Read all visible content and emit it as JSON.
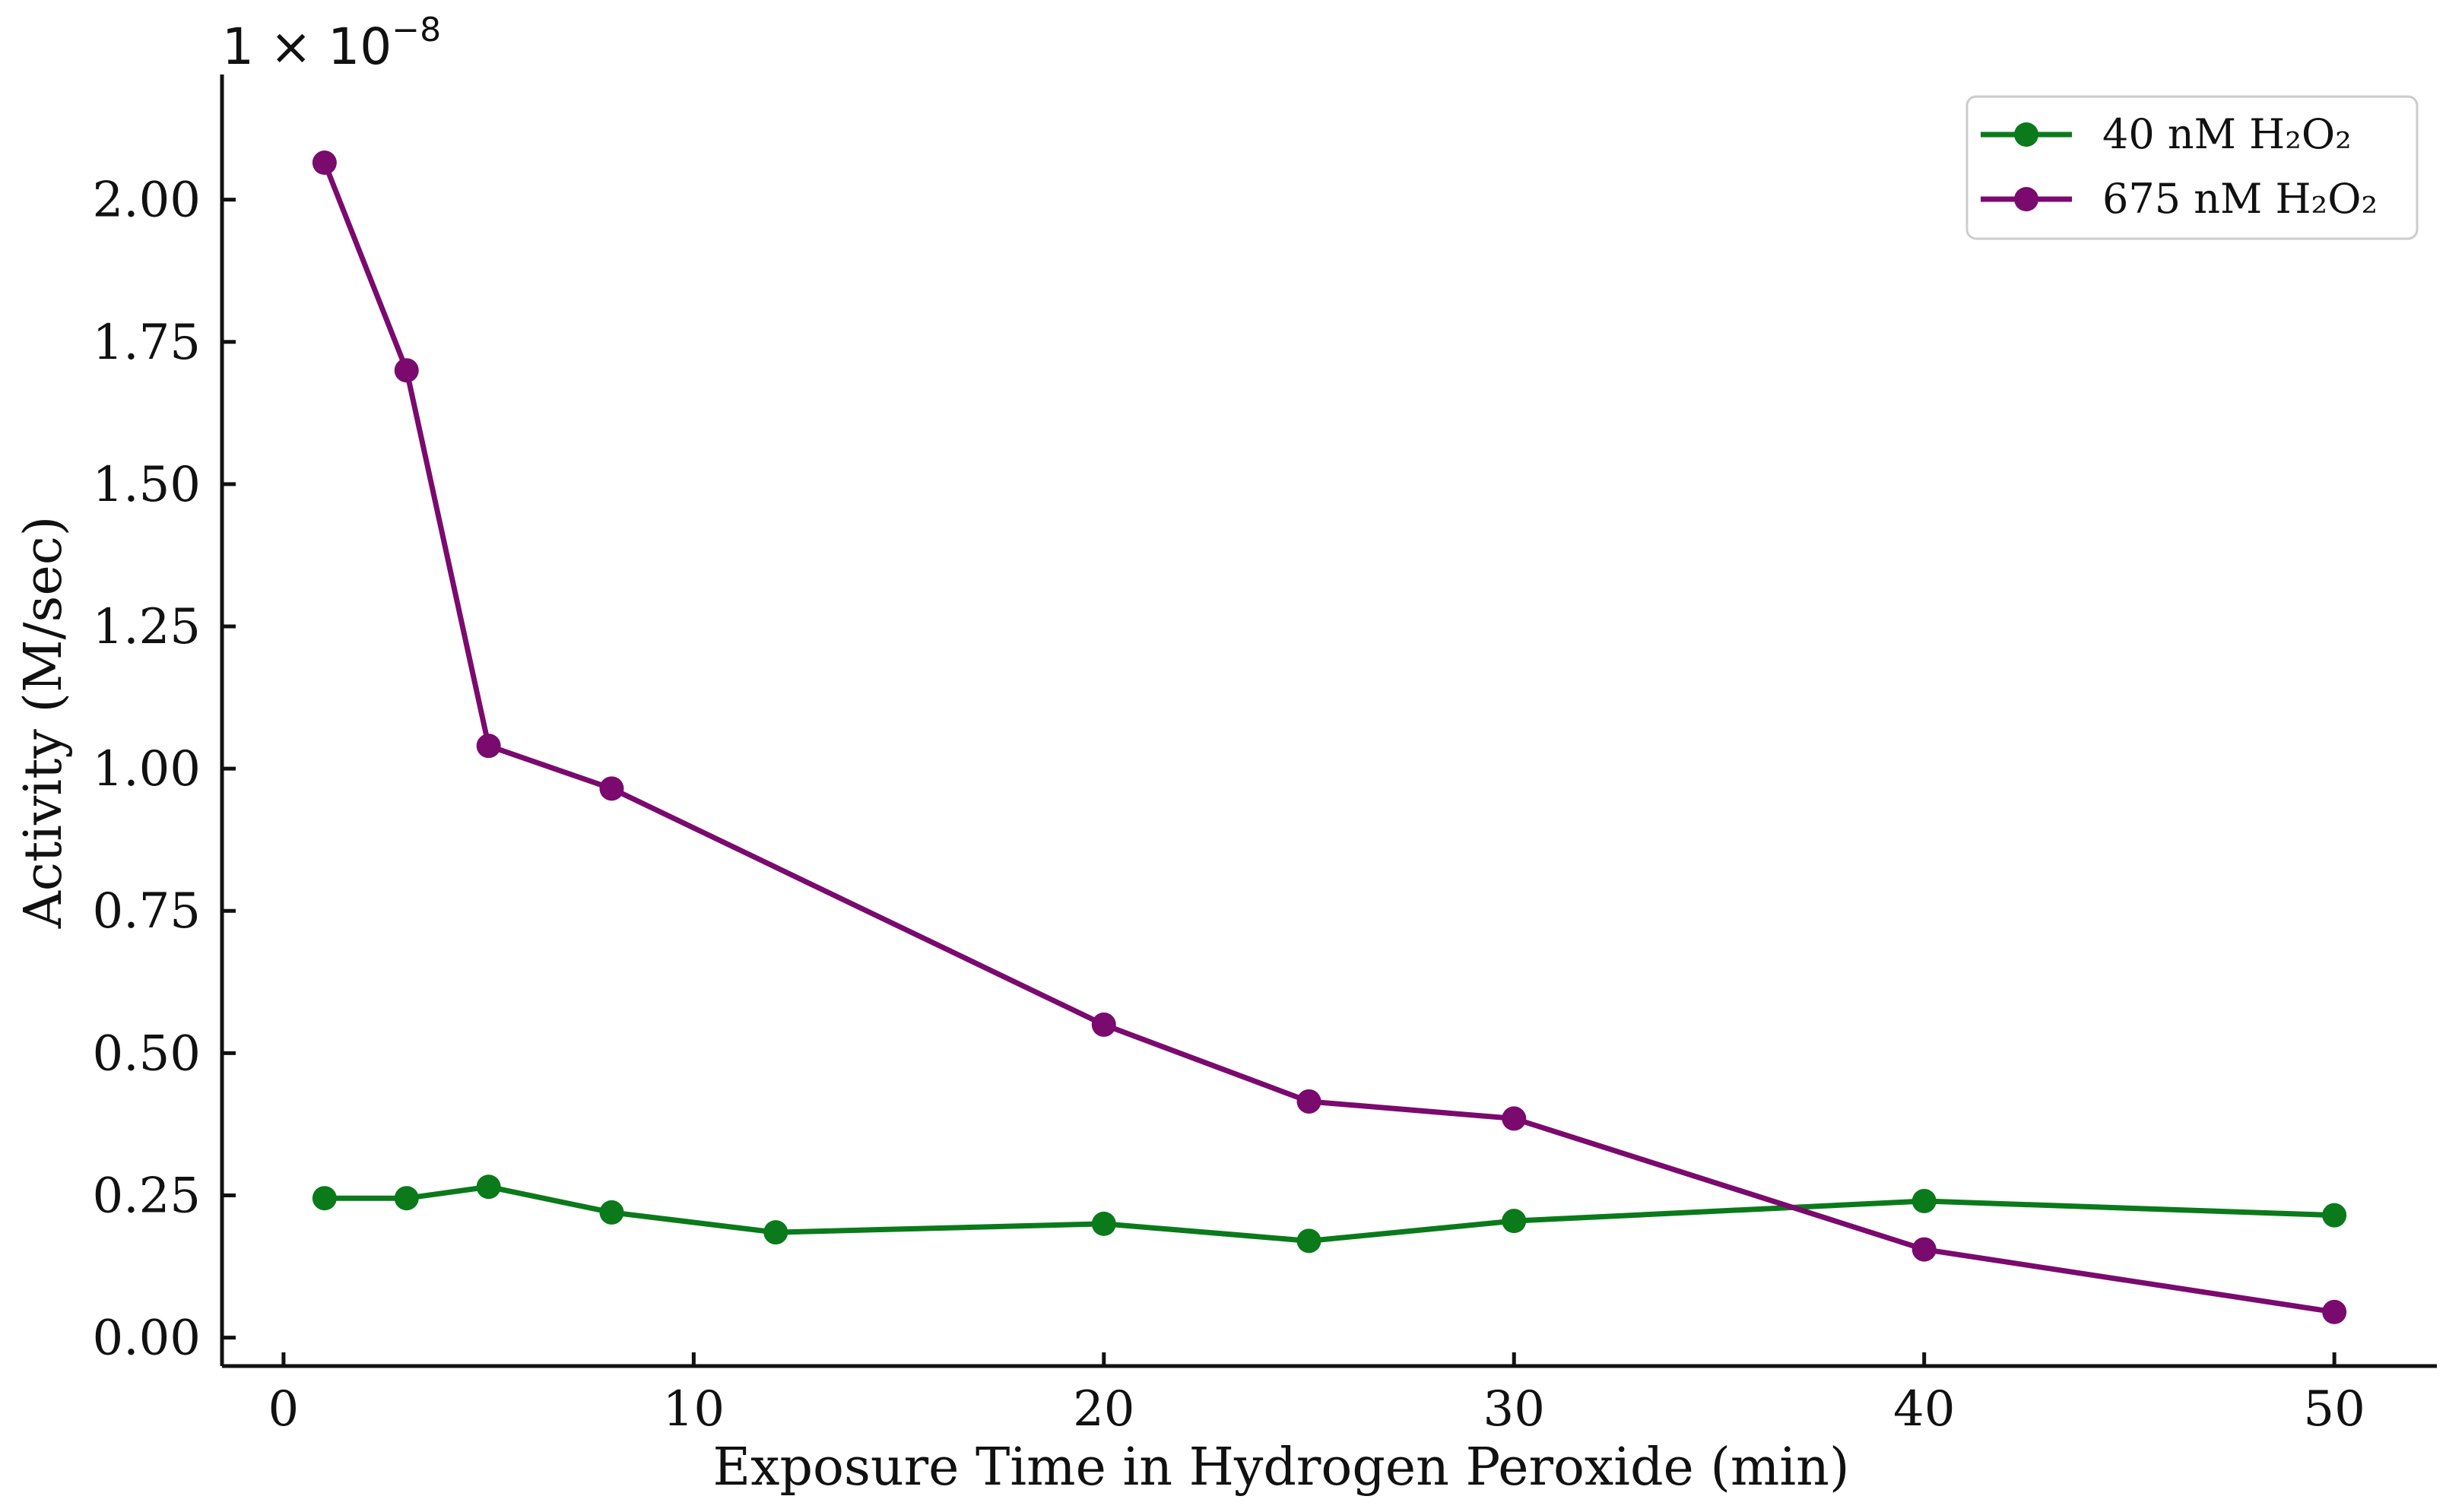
{
  "chart_data": {
    "type": "line",
    "xlabel": "Exposure Time in Hydrogen Peroxide (min)",
    "ylabel": "Activity (M/sec)",
    "y_scale_label": "1 × 10",
    "y_scale_exponent": "−8",
    "xlim": [
      -1.5,
      52.5
    ],
    "ylim": [
      -0.05,
      2.22
    ],
    "x_ticks": [
      0,
      10,
      20,
      30,
      40,
      50
    ],
    "x_tick_labels": [
      "0",
      "10",
      "20",
      "30",
      "40",
      "50"
    ],
    "y_ticks": [
      0.0,
      0.25,
      0.5,
      0.75,
      1.0,
      1.25,
      1.5,
      1.75,
      2.0
    ],
    "y_tick_labels": [
      "0.00",
      "0.25",
      "0.50",
      "0.75",
      "1.00",
      "1.25",
      "1.50",
      "1.75",
      "2.00"
    ],
    "grid": false,
    "legend_position": "top-right",
    "series": [
      {
        "name": "40 nM H₂O₂",
        "color": "#0a7a1a",
        "x": [
          1,
          3,
          5,
          8,
          12,
          20,
          25,
          30,
          40,
          50
        ],
        "y": [
          0.245,
          0.245,
          0.265,
          0.22,
          0.185,
          0.2,
          0.17,
          0.205,
          0.24,
          0.215
        ]
      },
      {
        "name": "675 nM H₂O₂",
        "color": "#7a0a6e",
        "x": [
          1,
          3,
          5,
          8,
          20,
          25,
          30,
          40,
          50
        ],
        "y": [
          2.065,
          1.7,
          1.04,
          0.965,
          0.55,
          0.415,
          0.385,
          0.155,
          0.045
        ]
      }
    ]
  }
}
